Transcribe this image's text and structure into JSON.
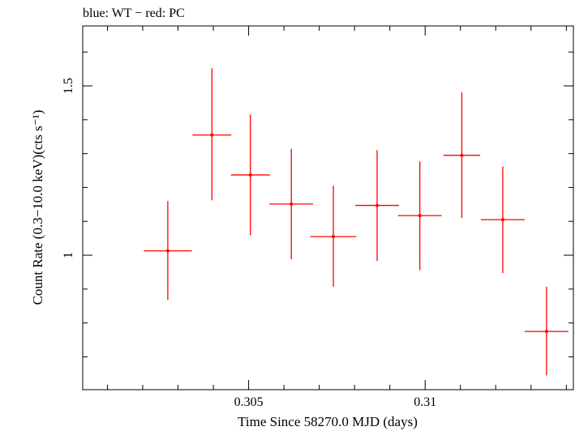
{
  "chart_data": {
    "type": "scatter",
    "title": "blue: WT − red: PC",
    "xlabel": "Time Since 58270.0 MJD (days)",
    "ylabel": "Count Rate (0.3−10.0 keV)(cts s⁻¹)",
    "xlim": [
      0.3003,
      0.3142
    ],
    "ylim": [
      0.603,
      1.677
    ],
    "x_ticks": [
      "0.305",
      "0.31"
    ],
    "y_ticks": [
      "1",
      "1.5"
    ],
    "grid": false,
    "series": [
      {
        "name": "PC",
        "color": "#ff0000",
        "points": [
          {
            "x": 0.30271,
            "xerr": 0.00068,
            "y": 1.013,
            "yerr_lo": 0.145,
            "yerr_hi": 0.147
          },
          {
            "x": 0.30396,
            "xerr": 0.00055,
            "y": 1.355,
            "yerr_lo": 0.193,
            "yerr_hi": 0.197
          },
          {
            "x": 0.30505,
            "xerr": 0.00055,
            "y": 1.237,
            "yerr_lo": 0.178,
            "yerr_hi": 0.178
          },
          {
            "x": 0.30621,
            "xerr": 0.00062,
            "y": 1.151,
            "yerr_lo": 0.163,
            "yerr_hi": 0.163
          },
          {
            "x": 0.3074,
            "xerr": 0.00065,
            "y": 1.055,
            "yerr_lo": 0.148,
            "yerr_hi": 0.15
          },
          {
            "x": 0.30864,
            "xerr": 0.00062,
            "y": 1.147,
            "yerr_lo": 0.164,
            "yerr_hi": 0.163
          },
          {
            "x": 0.30985,
            "xerr": 0.00062,
            "y": 1.117,
            "yerr_lo": 0.161,
            "yerr_hi": 0.16
          },
          {
            "x": 0.31104,
            "xerr": 0.00052,
            "y": 1.295,
            "yerr_lo": 0.185,
            "yerr_hi": 0.186
          },
          {
            "x": 0.3122,
            "xerr": 0.00062,
            "y": 1.105,
            "yerr_lo": 0.158,
            "yerr_hi": 0.157
          },
          {
            "x": 0.31344,
            "xerr": 0.00062,
            "y": 0.775,
            "yerr_lo": 0.13,
            "yerr_hi": 0.132
          }
        ]
      }
    ]
  }
}
